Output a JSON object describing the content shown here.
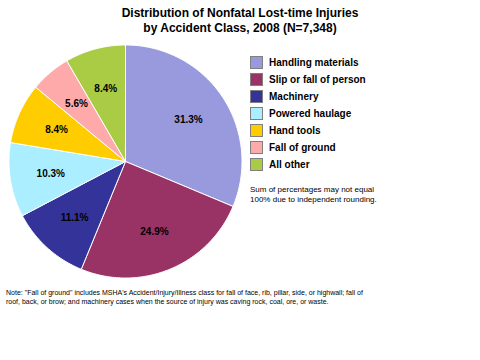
{
  "chart_data": {
    "type": "pie",
    "title": "Distribution of Nonfatal Lost-time Injuries\nby Accident Class, 2008 (N=7,348)",
    "categories": [
      "Handling materials",
      "Slip or fall of person",
      "Machinery",
      "Powered haulage",
      "Hand tools",
      "Fall of ground",
      "All other"
    ],
    "values": [
      31.3,
      24.9,
      11.1,
      10.3,
      8.4,
      5.6,
      8.4
    ],
    "value_labels": [
      "31.3%",
      "24.9%",
      "11.1%",
      "10.3%",
      "8.4%",
      "5.6%",
      "8.4%"
    ],
    "colors": [
      "#9999dd",
      "#993366",
      "#333399",
      "#aaeeff",
      "#ffcc00",
      "#ffaaaa",
      "#aacc44"
    ],
    "data_labels": true,
    "legend": "right",
    "annotations": [
      "Sum of percentages may not equal\n100% due to independent rounding.",
      "Note: \"Fall of ground\" includes MSHA's Accident/Injury/Illness class for fall of face, rib, pillar, side, or highwall; fall of\nroof, back, or brow; and machinery cases when the source of injury was caving rock, coal, ore, or waste."
    ]
  }
}
